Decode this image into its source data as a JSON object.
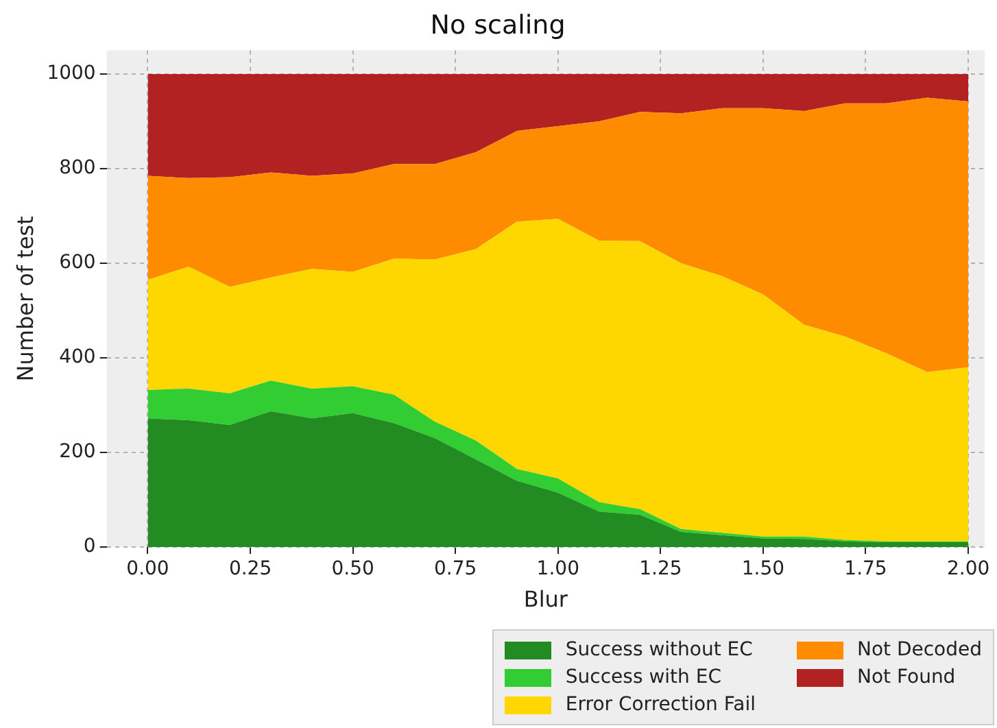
{
  "chart_data": {
    "type": "area",
    "stacked": true,
    "title": "No scaling",
    "xlabel": "Blur",
    "ylabel": "Number of test",
    "x": [
      0,
      0.1,
      0.2,
      0.3,
      0.4,
      0.5,
      0.6,
      0.7,
      0.8,
      0.9,
      1.0,
      1.1,
      1.2,
      1.3,
      1.4,
      1.5,
      1.6,
      1.7,
      1.8,
      1.9,
      2.0
    ],
    "series": [
      {
        "name": "Success without EC",
        "color": "#228b22",
        "values": [
          272,
          268,
          258,
          287,
          272,
          283,
          262,
          230,
          185,
          140,
          115,
          75,
          68,
          32,
          25,
          18,
          17,
          12,
          10,
          10,
          10
        ]
      },
      {
        "name": "Success with EC",
        "color": "#32cd32",
        "values": [
          60,
          67,
          67,
          65,
          63,
          57,
          60,
          35,
          40,
          25,
          30,
          20,
          12,
          6,
          5,
          4,
          5,
          3,
          2,
          2,
          2
        ]
      },
      {
        "name": "Error Correction Fail",
        "color": "#ffd700",
        "values": [
          233,
          258,
          225,
          218,
          253,
          242,
          288,
          343,
          405,
          523,
          549,
          553,
          567,
          562,
          543,
          512,
          448,
          430,
          398,
          358,
          368
        ]
      },
      {
        "name": "Not Decoded",
        "color": "#ff8c00",
        "values": [
          220,
          187,
          232,
          222,
          197,
          208,
          200,
          202,
          205,
          192,
          196,
          252,
          273,
          317,
          355,
          394,
          452,
          493,
          528,
          580,
          562
        ]
      },
      {
        "name": "Not Found",
        "color": "#b22222",
        "values": [
          215,
          220,
          218,
          208,
          215,
          210,
          190,
          190,
          165,
          120,
          110,
          100,
          80,
          83,
          72,
          72,
          78,
          62,
          62,
          50,
          58
        ]
      }
    ],
    "xlim": [
      -0.1,
      2.04
    ],
    "ylim": [
      0,
      1050
    ],
    "xticks": [
      {
        "value": 0,
        "label": "0.00"
      },
      {
        "value": 0.25,
        "label": "0.25"
      },
      {
        "value": 0.5,
        "label": "0.50"
      },
      {
        "value": 0.75,
        "label": "0.75"
      },
      {
        "value": 1,
        "label": "1.00"
      },
      {
        "value": 1.25,
        "label": "1.25"
      },
      {
        "value": 1.5,
        "label": "1.50"
      },
      {
        "value": 1.75,
        "label": "1.75"
      },
      {
        "value": 2,
        "label": "2.00"
      }
    ],
    "yticks": [
      0,
      200,
      400,
      600,
      800,
      1000
    ],
    "grid": true,
    "legend": "bottom right"
  }
}
